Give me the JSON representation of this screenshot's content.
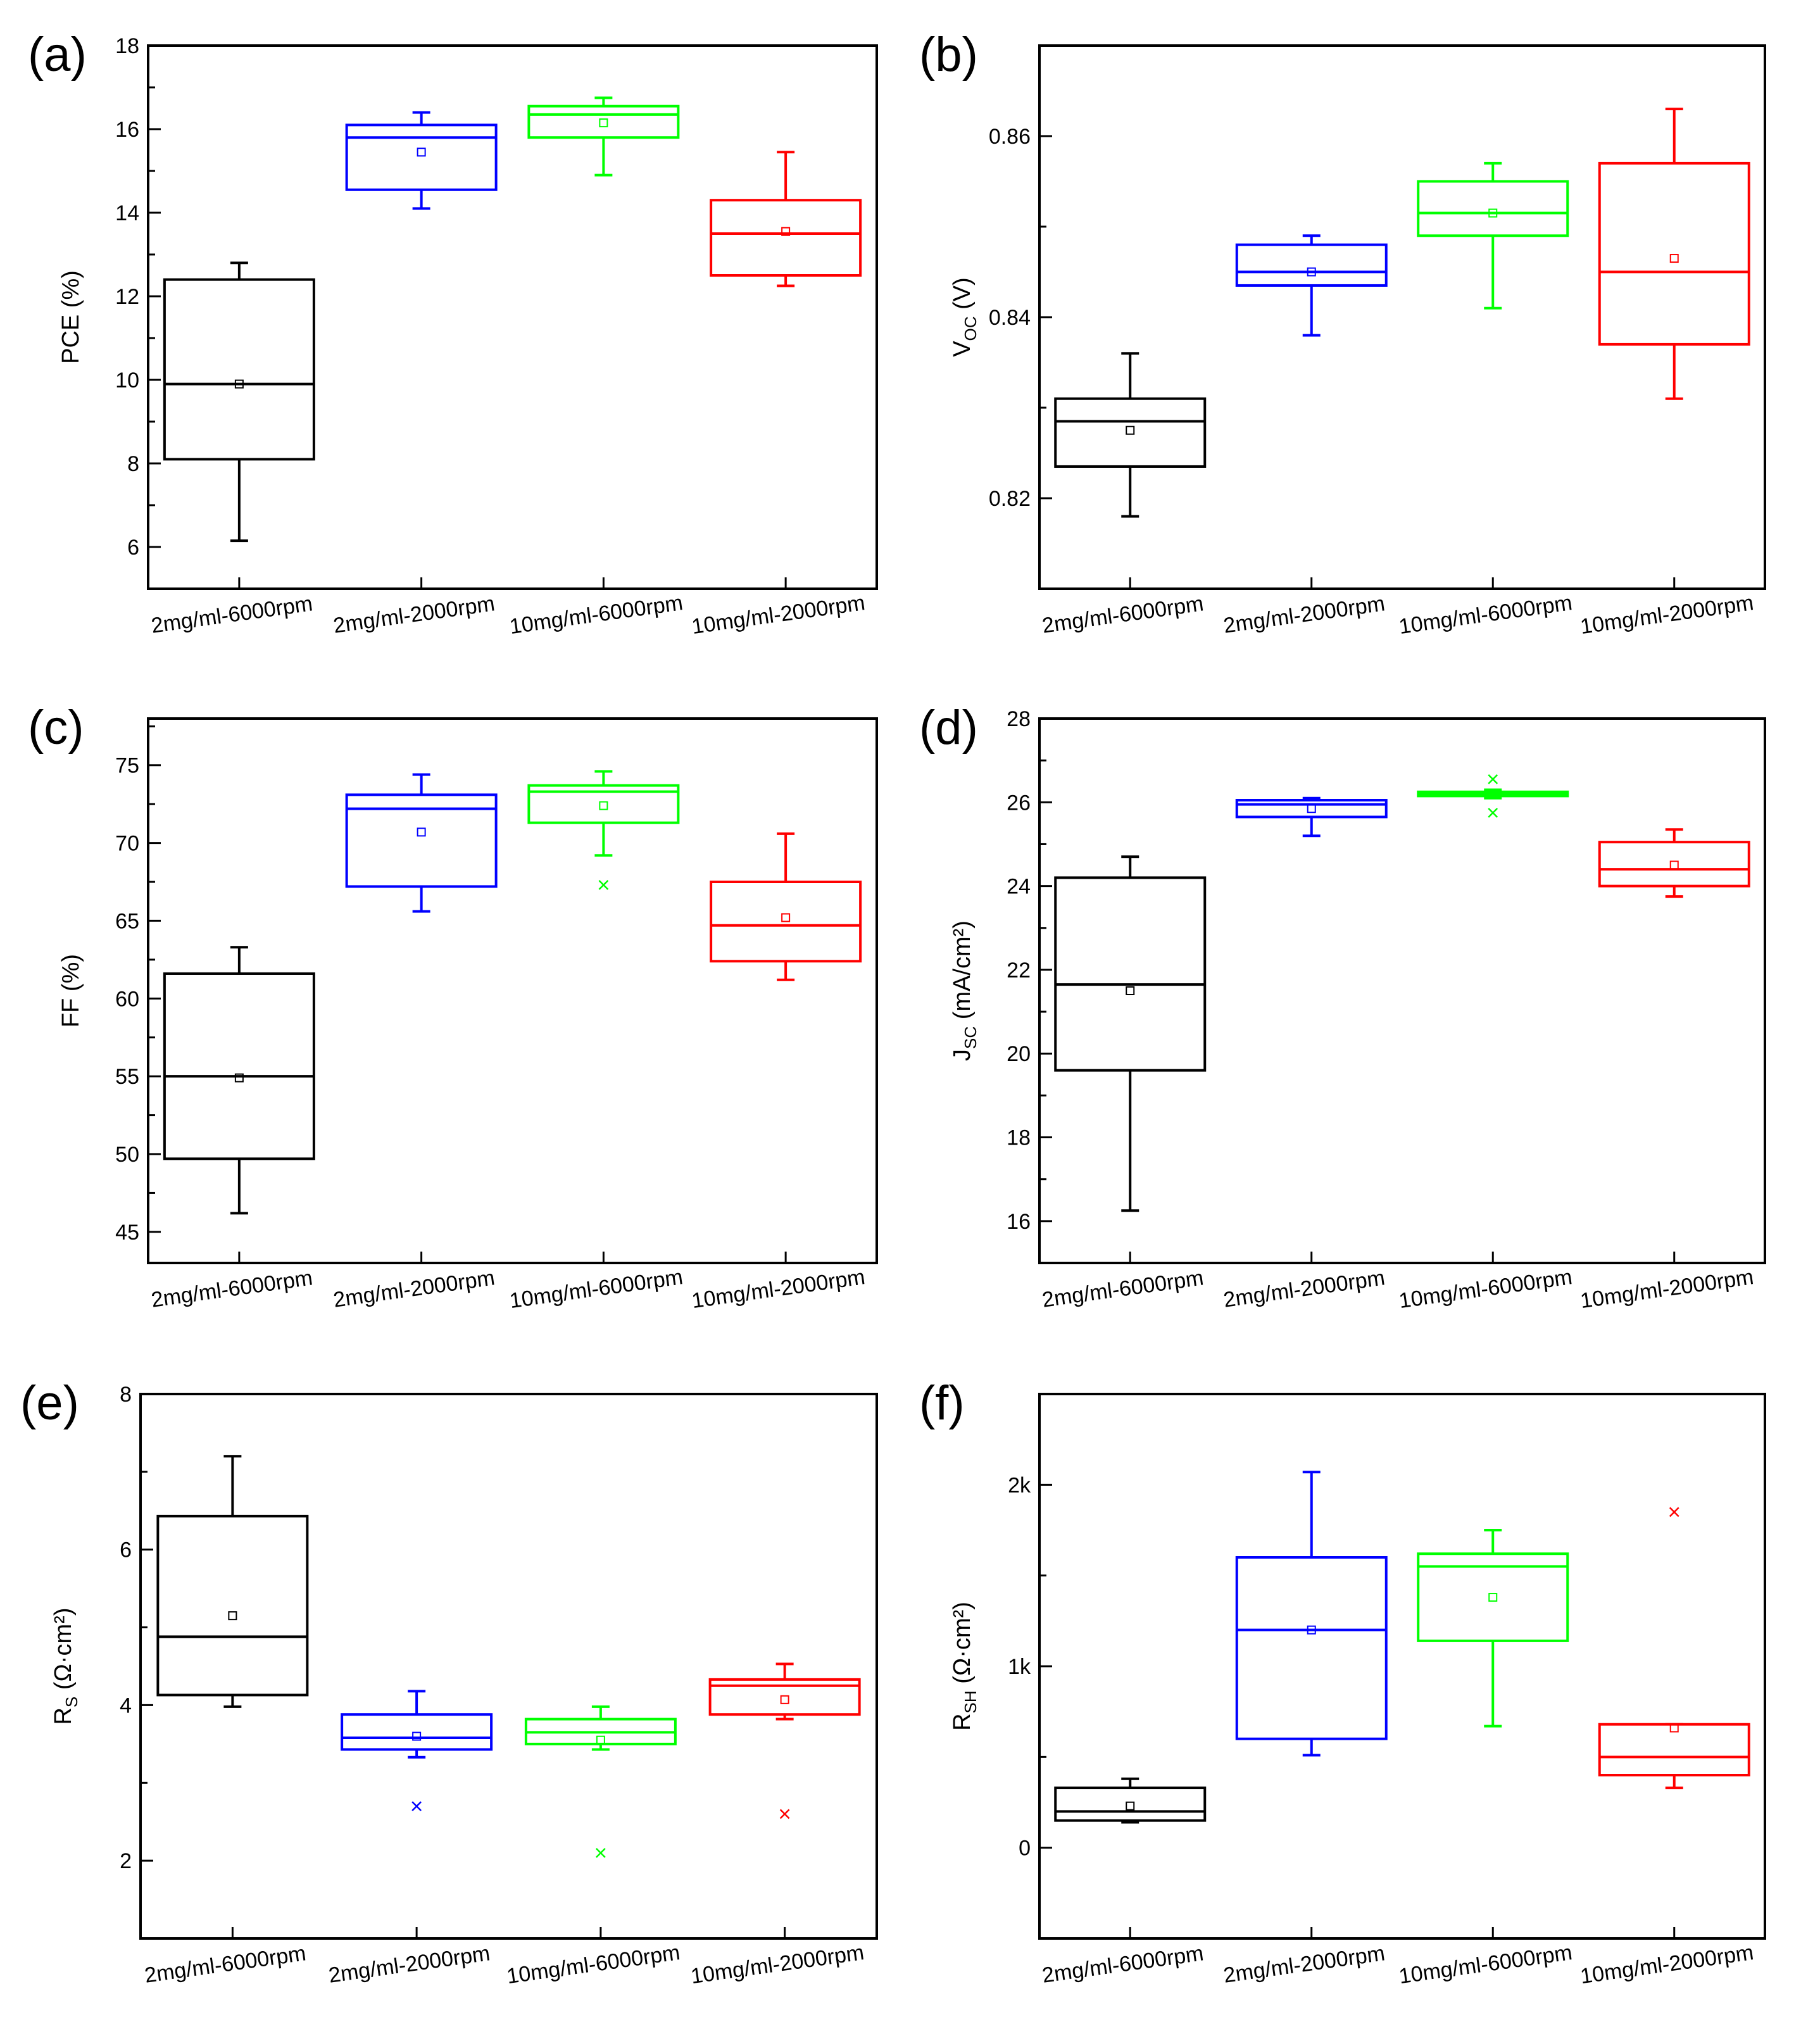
{
  "chart_data": [
    {
      "panel": "(a)",
      "type": "box",
      "ylabel": "PCE (%)",
      "ylim": [
        5,
        18
      ],
      "yticks": [
        6,
        8,
        10,
        12,
        14,
        16,
        18
      ],
      "ytick_labels": [
        "6",
        "8",
        "10",
        "12",
        "14",
        "16",
        "18"
      ],
      "categories": [
        "2mg/ml-6000rpm",
        "2mg/ml-2000rpm",
        "10mg/ml-6000rpm",
        "10mg/ml-2000rpm"
      ],
      "colors": [
        "#000000",
        "#0000ff",
        "#00ff00",
        "#ff0000"
      ],
      "boxes": [
        {
          "min": 6.15,
          "q1": 8.1,
          "median": 9.9,
          "q3": 12.4,
          "max": 12.8,
          "mean": 9.9,
          "outliers": []
        },
        {
          "min": 14.1,
          "q1": 14.55,
          "median": 15.8,
          "q3": 16.1,
          "max": 16.4,
          "mean": 15.45,
          "outliers": []
        },
        {
          "min": 14.9,
          "q1": 15.8,
          "median": 16.35,
          "q3": 16.55,
          "max": 16.75,
          "mean": 16.15,
          "outliers": []
        },
        {
          "min": 12.25,
          "q1": 12.5,
          "median": 13.5,
          "q3": 14.3,
          "max": 15.45,
          "mean": 13.55,
          "outliers": []
        }
      ]
    },
    {
      "panel": "(b)",
      "type": "box",
      "ylabel": "V",
      "ylabel_sub": "OC",
      "ylabel_tail": " (V)",
      "ylim": [
        0.81,
        0.87
      ],
      "yticks": [
        0.82,
        0.84,
        0.86
      ],
      "ytick_labels": [
        "0.82",
        "0.84",
        "0.86"
      ],
      "categories": [
        "2mg/ml-6000rpm",
        "2mg/ml-2000rpm",
        "10mg/ml-6000rpm",
        "10mg/ml-2000rpm"
      ],
      "colors": [
        "#000000",
        "#0000ff",
        "#00ff00",
        "#ff0000"
      ],
      "boxes": [
        {
          "min": 0.818,
          "q1": 0.8235,
          "median": 0.8285,
          "q3": 0.831,
          "max": 0.836,
          "mean": 0.8275,
          "outliers": []
        },
        {
          "min": 0.838,
          "q1": 0.8435,
          "median": 0.845,
          "q3": 0.848,
          "max": 0.849,
          "mean": 0.845,
          "outliers": []
        },
        {
          "min": 0.841,
          "q1": 0.849,
          "median": 0.8515,
          "q3": 0.855,
          "max": 0.857,
          "mean": 0.8515,
          "outliers": []
        },
        {
          "min": 0.831,
          "q1": 0.837,
          "median": 0.845,
          "q3": 0.857,
          "max": 0.863,
          "mean": 0.8465,
          "outliers": []
        }
      ]
    },
    {
      "panel": "(c)",
      "type": "box",
      "ylabel": "FF (%)",
      "ylim": [
        43,
        78
      ],
      "yticks": [
        45,
        50,
        55,
        60,
        65,
        70,
        75
      ],
      "ytick_labels": [
        "45",
        "50",
        "55",
        "60",
        "65",
        "70",
        "75"
      ],
      "categories": [
        "2mg/ml-6000rpm",
        "2mg/ml-2000rpm",
        "10mg/ml-6000rpm",
        "10mg/ml-2000rpm"
      ],
      "colors": [
        "#000000",
        "#0000ff",
        "#00ff00",
        "#ff0000"
      ],
      "boxes": [
        {
          "min": 46.2,
          "q1": 49.7,
          "median": 55.0,
          "q3": 61.6,
          "max": 63.3,
          "mean": 54.9,
          "outliers": []
        },
        {
          "min": 65.6,
          "q1": 67.2,
          "median": 72.2,
          "q3": 73.1,
          "max": 74.4,
          "mean": 70.7,
          "outliers": []
        },
        {
          "min": 69.2,
          "q1": 71.3,
          "median": 73.3,
          "q3": 73.7,
          "max": 74.6,
          "mean": 72.4,
          "outliers": [
            67.3
          ]
        },
        {
          "min": 61.2,
          "q1": 62.4,
          "median": 64.7,
          "q3": 67.5,
          "max": 70.6,
          "mean": 65.2,
          "outliers": []
        }
      ]
    },
    {
      "panel": "(d)",
      "type": "box",
      "ylabel": "J",
      "ylabel_sub": "SC",
      "ylabel_tail": " (mA/cm²)",
      "ylim": [
        15,
        28
      ],
      "yticks": [
        16,
        18,
        20,
        22,
        24,
        26,
        28
      ],
      "ytick_labels": [
        "16",
        "18",
        "20",
        "22",
        "24",
        "26",
        "28"
      ],
      "categories": [
        "2mg/ml-6000rpm",
        "2mg/ml-2000rpm",
        "10mg/ml-6000rpm",
        "10mg/ml-2000rpm"
      ],
      "colors": [
        "#000000",
        "#0000ff",
        "#00ff00",
        "#ff0000"
      ],
      "boxes": [
        {
          "min": 16.25,
          "q1": 19.6,
          "median": 21.65,
          "q3": 24.2,
          "max": 24.7,
          "mean": 21.5,
          "outliers": []
        },
        {
          "min": 25.2,
          "q1": 25.65,
          "median": 25.95,
          "q3": 26.05,
          "max": 26.1,
          "mean": 25.85,
          "outliers": []
        },
        {
          "min": 26.1,
          "q1": 26.15,
          "median": 26.2,
          "q3": 26.25,
          "max": 26.3,
          "mean": 26.2,
          "outliers": [
            25.75,
            26.55
          ]
        },
        {
          "min": 23.75,
          "q1": 24.0,
          "median": 24.4,
          "q3": 25.05,
          "max": 25.35,
          "mean": 24.5,
          "outliers": []
        }
      ]
    },
    {
      "panel": "(e)",
      "type": "box",
      "ylabel": "R",
      "ylabel_sub": "S",
      "ylabel_tail": " (Ω·cm²)",
      "ylim": [
        1,
        8
      ],
      "yticks": [
        2,
        4,
        6,
        8
      ],
      "ytick_labels": [
        "2",
        "4",
        "6",
        "8"
      ],
      "categories": [
        "2mg/ml-6000rpm",
        "2mg/ml-2000rpm",
        "10mg/ml-6000rpm",
        "10mg/ml-2000rpm"
      ],
      "colors": [
        "#000000",
        "#0000ff",
        "#00ff00",
        "#ff0000"
      ],
      "boxes": [
        {
          "min": 3.98,
          "q1": 4.13,
          "median": 4.88,
          "q3": 6.43,
          "max": 7.2,
          "mean": 5.15,
          "outliers": []
        },
        {
          "min": 3.33,
          "q1": 3.43,
          "median": 3.58,
          "q3": 3.88,
          "max": 4.18,
          "mean": 3.6,
          "outliers": [
            2.7
          ]
        },
        {
          "min": 3.43,
          "q1": 3.5,
          "median": 3.65,
          "q3": 3.82,
          "max": 3.98,
          "mean": 3.55,
          "outliers": [
            2.1
          ]
        },
        {
          "min": 3.82,
          "q1": 3.88,
          "median": 4.25,
          "q3": 4.33,
          "max": 4.53,
          "mean": 4.07,
          "outliers": [
            2.6
          ]
        }
      ]
    },
    {
      "panel": "(f)",
      "type": "box",
      "ylabel": "R",
      "ylabel_sub": "SH",
      "ylabel_tail": " (Ω·cm²)",
      "ylim": [
        -500,
        2500
      ],
      "yticks": [
        0,
        1000,
        2000
      ],
      "ytick_labels": [
        "0",
        "1k",
        "2k"
      ],
      "categories": [
        "2mg/ml-6000rpm",
        "2mg/ml-2000rpm",
        "10mg/ml-6000rpm",
        "10mg/ml-2000rpm"
      ],
      "colors": [
        "#000000",
        "#0000ff",
        "#00ff00",
        "#ff0000"
      ],
      "boxes": [
        {
          "min": 140,
          "q1": 150,
          "median": 200,
          "q3": 330,
          "max": 380,
          "mean": 230,
          "outliers": []
        },
        {
          "min": 510,
          "q1": 600,
          "median": 1200,
          "q3": 1600,
          "max": 2070,
          "mean": 1200,
          "outliers": []
        },
        {
          "min": 670,
          "q1": 1140,
          "median": 1550,
          "q3": 1620,
          "max": 1750,
          "mean": 1380,
          "outliers": []
        },
        {
          "min": 330,
          "q1": 400,
          "median": 500,
          "q3": 680,
          "max": 680,
          "mean": 660,
          "outliers": [
            1850
          ]
        }
      ]
    }
  ]
}
